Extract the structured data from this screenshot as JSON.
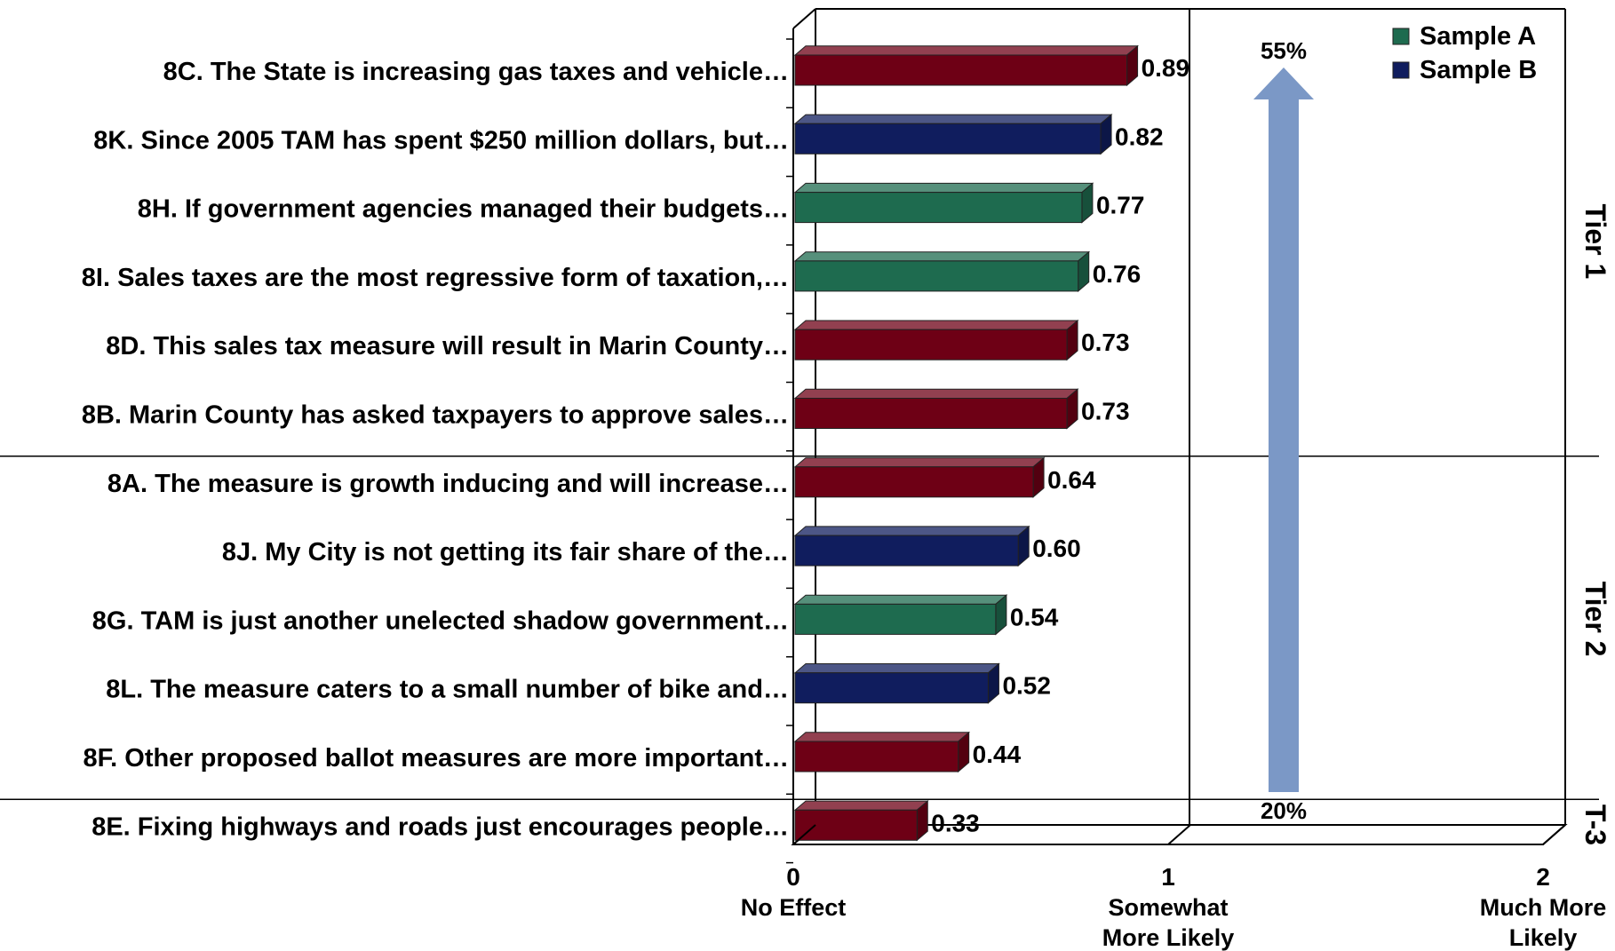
{
  "chart_data": {
    "type": "bar",
    "orientation": "horizontal",
    "style": "3d",
    "xlim": [
      0,
      2
    ],
    "x_ticks": [
      {
        "value": 0,
        "number": "0",
        "text": [
          "No Effect"
        ]
      },
      {
        "value": 1,
        "number": "1",
        "text": [
          "Somewhat",
          "More  Likely"
        ]
      },
      {
        "value": 2,
        "number": "2",
        "text": [
          "Much More",
          "Likely"
        ]
      }
    ],
    "legend": {
      "placement": "top-right",
      "entries": [
        {
          "label": "Sample A",
          "color": "#1e6b4f"
        },
        {
          "label": "Sample B",
          "color": "#101d5e"
        }
      ]
    },
    "series_colors": {
      "Sample A": "#1e6b4f",
      "Sample B": "#101d5e",
      "Both": "#6e0015"
    },
    "bars": [
      {
        "label": "8C. The State is increasing gas taxes and vehicle…",
        "value": 0.89,
        "value_label": "0.89",
        "sample": "Both"
      },
      {
        "label": "8K. Since 2005 TAM has spent $250 million dollars, but…",
        "value": 0.82,
        "value_label": "0.82",
        "sample": "Sample B"
      },
      {
        "label": "8H. If government agencies managed their budgets…",
        "value": 0.77,
        "value_label": "0.77",
        "sample": "Sample A"
      },
      {
        "label": "8I. Sales taxes are the most regressive form of taxation,…",
        "value": 0.76,
        "value_label": "0.76",
        "sample": "Sample A"
      },
      {
        "label": "8D. This sales tax measure will result in Marin County…",
        "value": 0.73,
        "value_label": "0.73",
        "sample": "Both"
      },
      {
        "label": "8B. Marin County has asked taxpayers to approve sales…",
        "value": 0.73,
        "value_label": "0.73",
        "sample": "Both"
      },
      {
        "label": "8A. The measure is growth inducing and will increase…",
        "value": 0.64,
        "value_label": "0.64",
        "sample": "Both"
      },
      {
        "label": "8J. My City is not getting its fair share of the…",
        "value": 0.6,
        "value_label": "0.60",
        "sample": "Sample B"
      },
      {
        "label": "8G. TAM is just another unelected shadow government…",
        "value": 0.54,
        "value_label": "0.54",
        "sample": "Sample A"
      },
      {
        "label": "8L. The measure caters to a small number of bike and…",
        "value": 0.52,
        "value_label": "0.52",
        "sample": "Sample B"
      },
      {
        "label": "8F. Other proposed ballot measures are more important…",
        "value": 0.44,
        "value_label": "0.44",
        "sample": "Both"
      },
      {
        "label": "8E. Fixing highways and roads just encourages people…",
        "value": 0.33,
        "value_label": "0.33",
        "sample": "Both"
      }
    ],
    "tiers": [
      {
        "label": "Tier 1",
        "first_bar": 0,
        "last_bar": 5
      },
      {
        "label": "Tier 2",
        "first_bar": 6,
        "last_bar": 10
      },
      {
        "label": "T-3",
        "first_bar": 11,
        "last_bar": 11
      }
    ],
    "annotation_arrow": {
      "top_label": "55%",
      "bottom_label": "20%",
      "color": "#7b98c6"
    }
  }
}
